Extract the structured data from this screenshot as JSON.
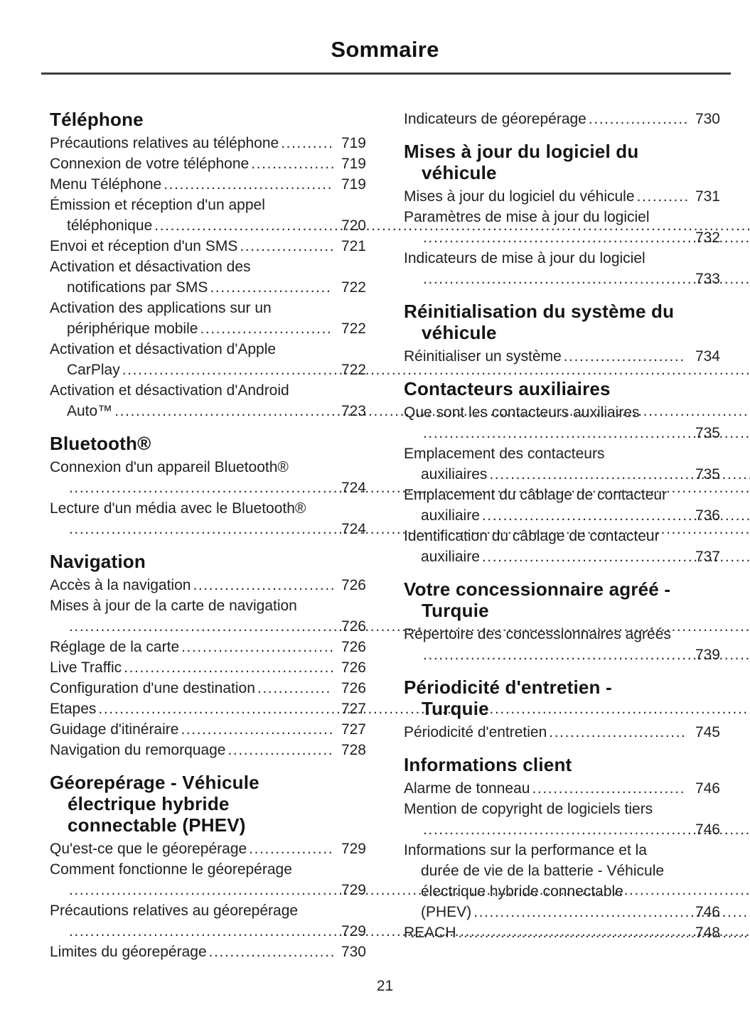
{
  "title": "Sommaire",
  "page_number": "21",
  "colors": {
    "text": "#1c1c1c",
    "rule": "#3d3d3d",
    "background": "#ffffff"
  },
  "columns": {
    "left": [
      {
        "heading": "Téléphone",
        "entries": [
          {
            "label": "Précautions relatives au téléphone",
            "page": "719"
          },
          {
            "label": "Connexion de votre téléphone",
            "page": "719"
          },
          {
            "label": "Menu Téléphone",
            "page": "719"
          },
          {
            "label": "Émission et réception d'un appel\ntéléphonique",
            "page": "720"
          },
          {
            "label": "Envoi et réception d'un SMS",
            "page": "721"
          },
          {
            "label": "Activation et désactivation des\nnotifications par SMS",
            "page": "722"
          },
          {
            "label": "Activation des applications sur un\npériphérique mobile",
            "page": "722"
          },
          {
            "label": "Activation et désactivation d'Apple\nCarPlay",
            "page": "722"
          },
          {
            "label": "Activation et désactivation d'Android\nAuto™",
            "page": "723"
          }
        ]
      },
      {
        "heading": "Bluetooth®",
        "entries": [
          {
            "label": "Connexion d'un appareil Bluetooth®\n",
            "page": "724"
          },
          {
            "label": "Lecture d'un média avec le Bluetooth®\n",
            "page": "724"
          }
        ]
      },
      {
        "heading": "Navigation",
        "entries": [
          {
            "label": "Accès à la navigation",
            "page": "726"
          },
          {
            "label": "Mises à jour de la carte de navigation\n",
            "page": "726"
          },
          {
            "label": "Réglage de la carte",
            "page": "726"
          },
          {
            "label": "Live Traffic",
            "page": "726"
          },
          {
            "label": "Configuration d'une destination",
            "page": "726"
          },
          {
            "label": "Etapes",
            "page": "727"
          },
          {
            "label": "Guidage d'itinéraire",
            "page": "727"
          },
          {
            "label": "Navigation du remorquage",
            "page": "728"
          }
        ]
      },
      {
        "heading": "Géorepérage - Véhicule\nélectrique hybride\nconnectable (PHEV)",
        "entries": [
          {
            "label": "Qu'est-ce que le géorepérage",
            "page": "729"
          },
          {
            "label": "Comment fonctionne le géorepérage\n",
            "page": "729"
          },
          {
            "label": "Précautions relatives au géorepérage\n",
            "page": "729"
          },
          {
            "label": "Limites du géorepérage",
            "page": "730"
          }
        ]
      }
    ],
    "right": [
      {
        "heading": null,
        "entries": [
          {
            "label": "Indicateurs de géorepérage",
            "page": "730"
          }
        ]
      },
      {
        "heading": "Mises à jour du logiciel du\nvéhicule",
        "entries": [
          {
            "label": "Mises à jour du logiciel du véhicule",
            "page": "731"
          },
          {
            "label": "Paramètres de mise à jour du logiciel\n",
            "page": "732"
          },
          {
            "label": "Indicateurs de mise à jour du logiciel\n",
            "page": "733"
          }
        ]
      },
      {
        "heading": "Réinitialisation du système du\nvéhicule",
        "entries": [
          {
            "label": "Réinitialiser un système",
            "page": "734"
          }
        ]
      },
      {
        "heading": "Contacteurs auxiliaires",
        "entries": [
          {
            "label": "Que sont les contacteurs auxiliaires\n",
            "page": "735"
          },
          {
            "label": "Emplacement des contacteurs\nauxiliaires",
            "page": "735"
          },
          {
            "label": "Emplacement du câblage de contacteur\nauxiliaire",
            "page": "736"
          },
          {
            "label": "Identification du câblage de contacteur\nauxiliaire",
            "page": "737"
          }
        ]
      },
      {
        "heading": "Votre concessionnaire agréé -\nTurquie",
        "entries": [
          {
            "label": "Répertoire des concessionnaires agréés\n",
            "page": "739"
          }
        ]
      },
      {
        "heading": "Périodicité d'entretien -\nTurquie",
        "entries": [
          {
            "label": "Périodicité d'entretien",
            "page": "745"
          }
        ]
      },
      {
        "heading": "Informations client",
        "entries": [
          {
            "label": "Alarme de tonneau",
            "page": "746"
          },
          {
            "label": "Mention de copyright de logiciels tiers\n",
            "page": "746"
          },
          {
            "label": "Informations sur la performance et la\ndurée de vie de la batterie - Véhicule\nélectrique hybride connectable\n(PHEV)",
            "page": "746"
          },
          {
            "label": "REACH",
            "page": "748"
          }
        ]
      }
    ]
  }
}
